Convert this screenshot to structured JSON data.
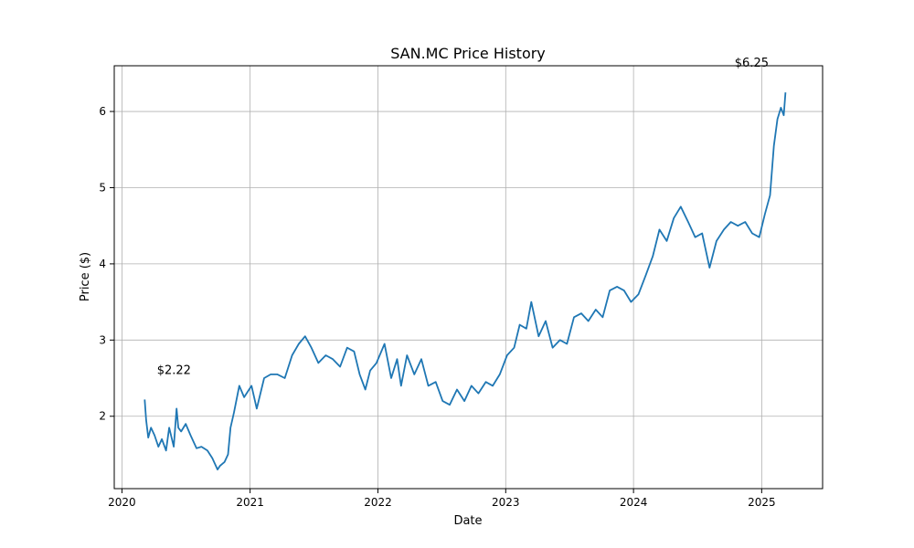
{
  "chart_data": {
    "type": "line",
    "title": "SAN.MC Price History",
    "xlabel": "Date",
    "ylabel": "Price ($)",
    "xlim": [
      "2019-12-10",
      "2025-06-24"
    ],
    "ylim": [
      1.05,
      6.6
    ],
    "x_ticks": [
      "2020",
      "2021",
      "2022",
      "2023",
      "2024",
      "2025"
    ],
    "y_ticks": [
      "2",
      "3",
      "4",
      "5",
      "6"
    ],
    "grid": true,
    "series": [
      {
        "name": "",
        "color": "#1f77b4",
        "x": [
          "2020-03-06",
          "2020-03-10",
          "2020-03-16",
          "2020-03-24",
          "2020-04-03",
          "2020-04-14",
          "2020-04-24",
          "2020-05-06",
          "2020-05-15",
          "2020-05-28",
          "2020-06-05",
          "2020-06-10",
          "2020-06-18",
          "2020-07-01",
          "2020-07-15",
          "2020-08-01",
          "2020-08-15",
          "2020-09-01",
          "2020-09-15",
          "2020-09-30",
          "2020-10-07",
          "2020-10-20",
          "2020-10-30",
          "2020-11-06",
          "2020-11-16",
          "2020-12-01",
          "2020-12-15",
          "2021-01-05",
          "2021-01-20",
          "2021-02-10",
          "2021-03-01",
          "2021-03-20",
          "2021-04-10",
          "2021-05-01",
          "2021-05-20",
          "2021-06-07",
          "2021-06-25",
          "2021-07-15",
          "2021-08-05",
          "2021-08-25",
          "2021-09-15",
          "2021-10-05",
          "2021-10-25",
          "2021-11-10",
          "2021-11-26",
          "2021-12-10",
          "2021-12-28",
          "2022-01-20",
          "2022-02-08",
          "2022-02-25",
          "2022-03-08",
          "2022-03-25",
          "2022-04-15",
          "2022-05-05",
          "2022-05-25",
          "2022-06-15",
          "2022-07-05",
          "2022-07-25",
          "2022-08-15",
          "2022-09-05",
          "2022-09-25",
          "2022-10-15",
          "2022-11-05",
          "2022-11-25",
          "2022-12-15",
          "2023-01-05",
          "2023-01-25",
          "2023-02-10",
          "2023-03-01",
          "2023-03-15",
          "2023-04-05",
          "2023-04-25",
          "2023-05-15",
          "2023-06-05",
          "2023-06-25",
          "2023-07-15",
          "2023-08-05",
          "2023-08-25",
          "2023-09-15",
          "2023-10-05",
          "2023-10-25",
          "2023-11-15",
          "2023-12-05",
          "2023-12-25",
          "2024-01-15",
          "2024-02-05",
          "2024-02-25",
          "2024-03-15",
          "2024-04-05",
          "2024-04-25",
          "2024-05-15",
          "2024-06-05",
          "2024-06-25",
          "2024-07-15",
          "2024-08-05",
          "2024-08-25",
          "2024-09-15",
          "2024-10-05",
          "2024-10-25",
          "2024-11-15",
          "2024-12-05",
          "2024-12-25",
          "2025-01-10",
          "2025-01-25",
          "2025-02-05",
          "2025-02-15",
          "2025-02-25",
          "2025-03-05",
          "2025-03-10"
        ],
        "y": [
          2.22,
          1.95,
          1.72,
          1.85,
          1.75,
          1.6,
          1.7,
          1.55,
          1.85,
          1.6,
          2.1,
          1.85,
          1.8,
          1.9,
          1.75,
          1.58,
          1.6,
          1.55,
          1.45,
          1.3,
          1.35,
          1.4,
          1.5,
          1.85,
          2.05,
          2.4,
          2.25,
          2.4,
          2.1,
          2.5,
          2.55,
          2.55,
          2.5,
          2.8,
          2.95,
          3.05,
          2.9,
          2.7,
          2.8,
          2.75,
          2.65,
          2.9,
          2.85,
          2.55,
          2.35,
          2.6,
          2.7,
          2.95,
          2.5,
          2.75,
          2.4,
          2.8,
          2.55,
          2.75,
          2.4,
          2.45,
          2.2,
          2.15,
          2.35,
          2.2,
          2.4,
          2.3,
          2.45,
          2.4,
          2.55,
          2.8,
          2.9,
          3.2,
          3.15,
          3.5,
          3.05,
          3.25,
          2.9,
          3.0,
          2.95,
          3.3,
          3.35,
          3.25,
          3.4,
          3.3,
          3.65,
          3.7,
          3.65,
          3.5,
          3.6,
          3.85,
          4.1,
          4.45,
          4.3,
          4.6,
          4.75,
          4.55,
          4.35,
          4.4,
          3.95,
          4.3,
          4.45,
          4.55,
          4.5,
          4.55,
          4.4,
          4.35,
          4.65,
          4.9,
          5.55,
          5.9,
          6.05,
          5.95,
          6.25
        ]
      }
    ],
    "annotations": [
      {
        "text": "$2.22",
        "x": "2020-03-06",
        "y": 2.22
      },
      {
        "text": "$6.25",
        "x": "2025-03-10",
        "y": 6.25
      }
    ]
  }
}
